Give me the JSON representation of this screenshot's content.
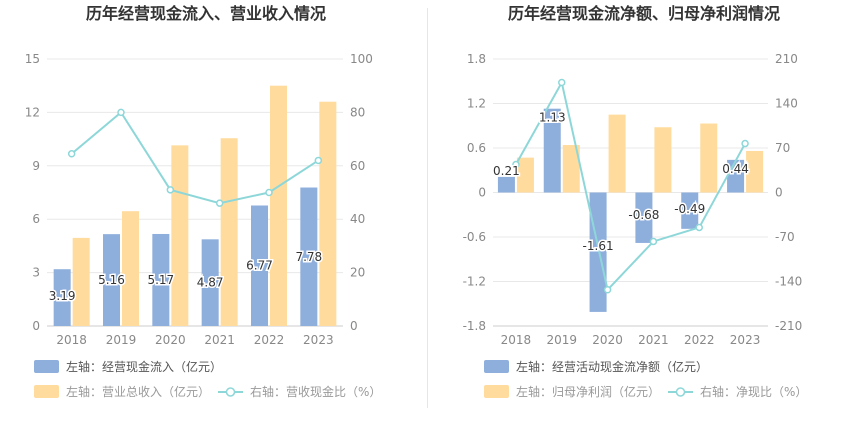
{
  "colors": {
    "bar_blue": "#8eaedc",
    "bar_orange": "#ffdc9e",
    "line_teal": "#8ed7d9",
    "axis_text": "#888888",
    "grid": "#e8e8e8",
    "title": "#333333"
  },
  "chart_data": [
    {
      "type": "bar",
      "title": "历年经营现金流入、营业收入情况",
      "categories": [
        "2018",
        "2019",
        "2020",
        "2021",
        "2022",
        "2023"
      ],
      "left_axis": {
        "min": 0,
        "max": 15,
        "ticks": [
          "0",
          "3",
          "6",
          "9",
          "12",
          "15"
        ]
      },
      "right_axis": {
        "min": 0,
        "max": 100,
        "ticks": [
          "0",
          "20",
          "40",
          "60",
          "80",
          "100"
        ]
      },
      "series": [
        {
          "name": "左轴：经营现金流入（亿元）",
          "kind": "bar",
          "axis": "left",
          "values": [
            3.19,
            5.16,
            5.17,
            4.87,
            6.77,
            7.78
          ],
          "labels": [
            "3.19",
            "5.16",
            "5.17",
            "4.87",
            "6.77",
            "7.78"
          ]
        },
        {
          "name": "左轴：营业总收入（亿元）",
          "kind": "bar",
          "axis": "left",
          "values": [
            4.95,
            6.45,
            10.15,
            10.55,
            13.5,
            12.6
          ]
        },
        {
          "name": "右轴：营收现金比（%）",
          "kind": "line",
          "axis": "right",
          "values": [
            64.5,
            80.0,
            51.0,
            46.0,
            50.0,
            62.0
          ]
        }
      ],
      "grid": true,
      "legend": "bottom"
    },
    {
      "type": "bar",
      "title": "历年经营现金流净额、归母净利润情况",
      "categories": [
        "2018",
        "2019",
        "2020",
        "2021",
        "2022",
        "2023"
      ],
      "left_axis": {
        "min": -1.8,
        "max": 1.8,
        "ticks": [
          "-1.8",
          "-1.2",
          "-0.6",
          "0",
          "0.6",
          "1.2",
          "1.8"
        ]
      },
      "right_axis": {
        "min": -210,
        "max": 210,
        "ticks": [
          "-210",
          "-140",
          "-70",
          "0",
          "70",
          "140",
          "210"
        ]
      },
      "series": [
        {
          "name": "左轴：经营活动现金流净额（亿元）",
          "kind": "bar",
          "axis": "left",
          "values": [
            0.21,
            1.13,
            -1.61,
            -0.68,
            -0.49,
            0.44
          ],
          "labels": [
            "0.21",
            "1.13",
            "-1.61",
            "-0.68",
            "-0.49",
            "0.44"
          ]
        },
        {
          "name": "左轴：归母净利润（亿元）",
          "kind": "bar",
          "axis": "left",
          "values": [
            0.47,
            0.64,
            1.05,
            0.88,
            0.93,
            0.56
          ]
        },
        {
          "name": "右轴：净现比（%）",
          "kind": "line",
          "axis": "right",
          "values": [
            44,
            173,
            -153,
            -77,
            -55,
            77
          ]
        }
      ],
      "grid": true,
      "legend": "bottom"
    }
  ]
}
